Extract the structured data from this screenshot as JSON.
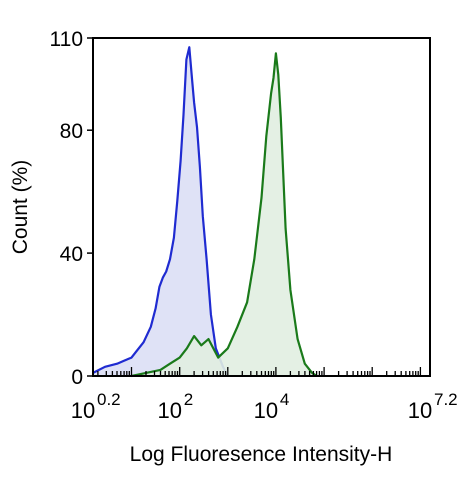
{
  "chart_data": {
    "type": "area",
    "title": "",
    "xlabel": "Log Fluoresence Intensity-H",
    "ylabel": "Count  (%)",
    "x_scale": "log",
    "xlim_log10": [
      0.2,
      7.2
    ],
    "ylim": [
      0,
      110
    ],
    "grid": false,
    "legend": "none",
    "x_tick_labels": [
      {
        "base": "10",
        "exp": "0.2",
        "log10": 0.2
      },
      {
        "base": "10",
        "exp": "2",
        "log10": 2
      },
      {
        "base": "10",
        "exp": "4",
        "log10": 4
      },
      {
        "base": "10",
        "exp": "7.2",
        "log10": 7.2
      }
    ],
    "y_tick_labels": [
      {
        "label": "0",
        "value": 0
      },
      {
        "label": "40",
        "value": 40
      },
      {
        "label": "80",
        "value": 80
      },
      {
        "label": "110",
        "value": 110
      }
    ],
    "series": [
      {
        "color": "#1f2bd1",
        "fill": "#dcdff5",
        "log10_x": [
          0.2,
          0.45,
          0.7,
          0.85,
          1.0,
          1.1,
          1.25,
          1.4,
          1.5,
          1.58,
          1.65,
          1.72,
          1.8,
          1.88,
          1.95,
          2.02,
          2.08,
          2.14,
          2.2,
          2.26,
          2.3,
          2.36,
          2.42,
          2.48,
          2.56,
          2.65,
          2.75,
          2.9,
          3.0
        ],
        "y": [
          1,
          3,
          4,
          5,
          6,
          8,
          11,
          16,
          22,
          29,
          32,
          34,
          38,
          45,
          57,
          70,
          85,
          103,
          107,
          96,
          89,
          81,
          68,
          52,
          38,
          20,
          9,
          3,
          0
        ]
      },
      {
        "color": "#1a7a1a",
        "fill": "#e1eee1",
        "log10_x": [
          1.0,
          1.3,
          1.6,
          1.8,
          2.0,
          2.15,
          2.3,
          2.45,
          2.6,
          2.8,
          3.0,
          3.2,
          3.4,
          3.55,
          3.7,
          3.8,
          3.9,
          3.95,
          4.0,
          4.05,
          4.1,
          4.15,
          4.2,
          4.3,
          4.45,
          4.6,
          4.75,
          4.85
        ],
        "y": [
          0,
          1,
          2,
          4,
          6,
          9,
          13,
          10,
          12,
          6,
          9,
          16,
          24,
          38,
          58,
          78,
          92,
          97,
          105,
          98,
          84,
          66,
          48,
          28,
          12,
          4,
          1,
          0
        ]
      }
    ]
  }
}
